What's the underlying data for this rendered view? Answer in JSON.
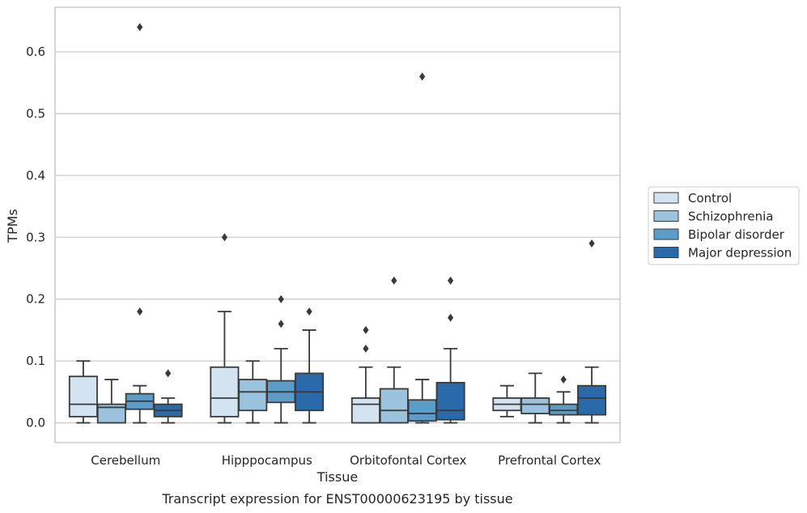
{
  "chart_data": {
    "type": "box",
    "caption": "Transcript expression for ENST00000623195 by tissue",
    "xlabel": "Tissue",
    "ylabel": "TPMs",
    "ylim": [
      -0.032,
      0.672
    ],
    "yticks": [
      0.0,
      0.1,
      0.2,
      0.3,
      0.4,
      0.5,
      0.6
    ],
    "ytick_labels": [
      "0.0",
      "0.1",
      "0.2",
      "0.3",
      "0.4",
      "0.5",
      "0.6"
    ],
    "grid": "horizontal",
    "legend_position": "right",
    "categories": [
      "Cerebellum",
      "Hipppocampus",
      "Orbitofontal Cortex",
      "Prefrontal Cortex"
    ],
    "series": [
      {
        "name": "Control",
        "color": "#d4e3f2",
        "boxes": [
          {
            "whislo": 0.0,
            "q1": 0.01,
            "med": 0.03,
            "q3": 0.075,
            "whishi": 0.1,
            "fliers": []
          },
          {
            "whislo": 0.0,
            "q1": 0.01,
            "med": 0.04,
            "q3": 0.09,
            "whishi": 0.18,
            "fliers": [
              0.3
            ]
          },
          {
            "whislo": 0.0,
            "q1": 0.0,
            "med": 0.03,
            "q3": 0.04,
            "whishi": 0.09,
            "fliers": [
              0.12,
              0.15
            ]
          },
          {
            "whislo": 0.01,
            "q1": 0.02,
            "med": 0.03,
            "q3": 0.04,
            "whishi": 0.06,
            "fliers": []
          }
        ]
      },
      {
        "name": "Schizophrenia",
        "color": "#9bc3de",
        "boxes": [
          {
            "whislo": 0.0,
            "q1": 0.0,
            "med": 0.025,
            "q3": 0.03,
            "whishi": 0.07,
            "fliers": []
          },
          {
            "whislo": 0.0,
            "q1": 0.02,
            "med": 0.05,
            "q3": 0.07,
            "whishi": 0.1,
            "fliers": []
          },
          {
            "whislo": 0.0,
            "q1": 0.0,
            "med": 0.02,
            "q3": 0.055,
            "whishi": 0.09,
            "fliers": [
              0.23
            ]
          },
          {
            "whislo": 0.0,
            "q1": 0.015,
            "med": 0.03,
            "q3": 0.04,
            "whishi": 0.08,
            "fliers": []
          }
        ]
      },
      {
        "name": "Bipolar disorder",
        "color": "#5b9cc9",
        "boxes": [
          {
            "whislo": 0.0,
            "q1": 0.022,
            "med": 0.035,
            "q3": 0.047,
            "whishi": 0.06,
            "fliers": [
              0.18,
              0.64
            ]
          },
          {
            "whislo": 0.0,
            "q1": 0.033,
            "med": 0.05,
            "q3": 0.068,
            "whishi": 0.12,
            "fliers": [
              0.16,
              0.2
            ]
          },
          {
            "whislo": 0.0,
            "q1": 0.003,
            "med": 0.015,
            "q3": 0.037,
            "whishi": 0.07,
            "fliers": [
              0.56
            ]
          },
          {
            "whislo": 0.0,
            "q1": 0.013,
            "med": 0.02,
            "q3": 0.03,
            "whishi": 0.05,
            "fliers": [
              0.07
            ]
          }
        ]
      },
      {
        "name": "Major depression",
        "color": "#2a6aaa",
        "boxes": [
          {
            "whislo": 0.0,
            "q1": 0.01,
            "med": 0.02,
            "q3": 0.03,
            "whishi": 0.04,
            "fliers": [
              0.08
            ]
          },
          {
            "whislo": 0.0,
            "q1": 0.02,
            "med": 0.05,
            "q3": 0.08,
            "whishi": 0.15,
            "fliers": [
              0.18
            ]
          },
          {
            "whislo": 0.0,
            "q1": 0.005,
            "med": 0.02,
            "q3": 0.065,
            "whishi": 0.12,
            "fliers": [
              0.17,
              0.23
            ]
          },
          {
            "whislo": 0.0,
            "q1": 0.013,
            "med": 0.04,
            "q3": 0.06,
            "whishi": 0.09,
            "fliers": [
              0.29
            ]
          }
        ]
      }
    ]
  }
}
